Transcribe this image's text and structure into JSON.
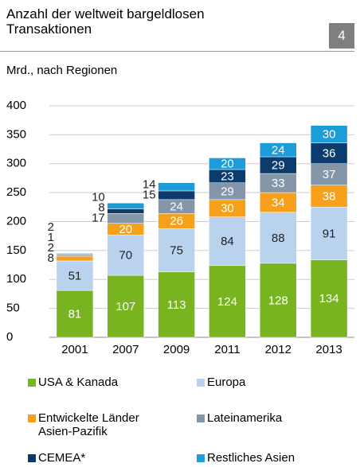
{
  "chart_data": {
    "type": "bar",
    "stacked": true,
    "title": "Anzahl der weltweit bargeldlosen Transaktionen",
    "page_number": "4",
    "subtitle": "Mrd., nach Regionen",
    "categories": [
      "2001",
      "2007",
      "2009",
      "2011",
      "2012",
      "2013"
    ],
    "series": [
      {
        "name": "USA & Kanada",
        "color": "#77b41f",
        "values": [
          81,
          107,
          113,
          124,
          128,
          134
        ]
      },
      {
        "name": "Europa",
        "color": "#b9d3ee",
        "values": [
          51,
          70,
          75,
          84,
          88,
          91
        ]
      },
      {
        "name": "Entwickelte Länder Asien-Pazifik",
        "color": "#f7a11a",
        "values": [
          8,
          20,
          26,
          30,
          34,
          38
        ]
      },
      {
        "name": "Lateinamerika",
        "color": "#8496a9",
        "values": [
          2,
          17,
          24,
          29,
          33,
          37
        ]
      },
      {
        "name": "CEMEA*",
        "color": "#0c3c6e",
        "values": [
          1,
          8,
          15,
          23,
          29,
          36
        ]
      },
      {
        "name": "Restliches Asien",
        "color": "#1c9cd8",
        "values": [
          2,
          10,
          14,
          20,
          24,
          30
        ]
      }
    ],
    "ylim": [
      0,
      400
    ],
    "yticks": [
      0,
      50,
      100,
      150,
      200,
      250,
      300,
      350,
      400
    ],
    "grid": true
  }
}
